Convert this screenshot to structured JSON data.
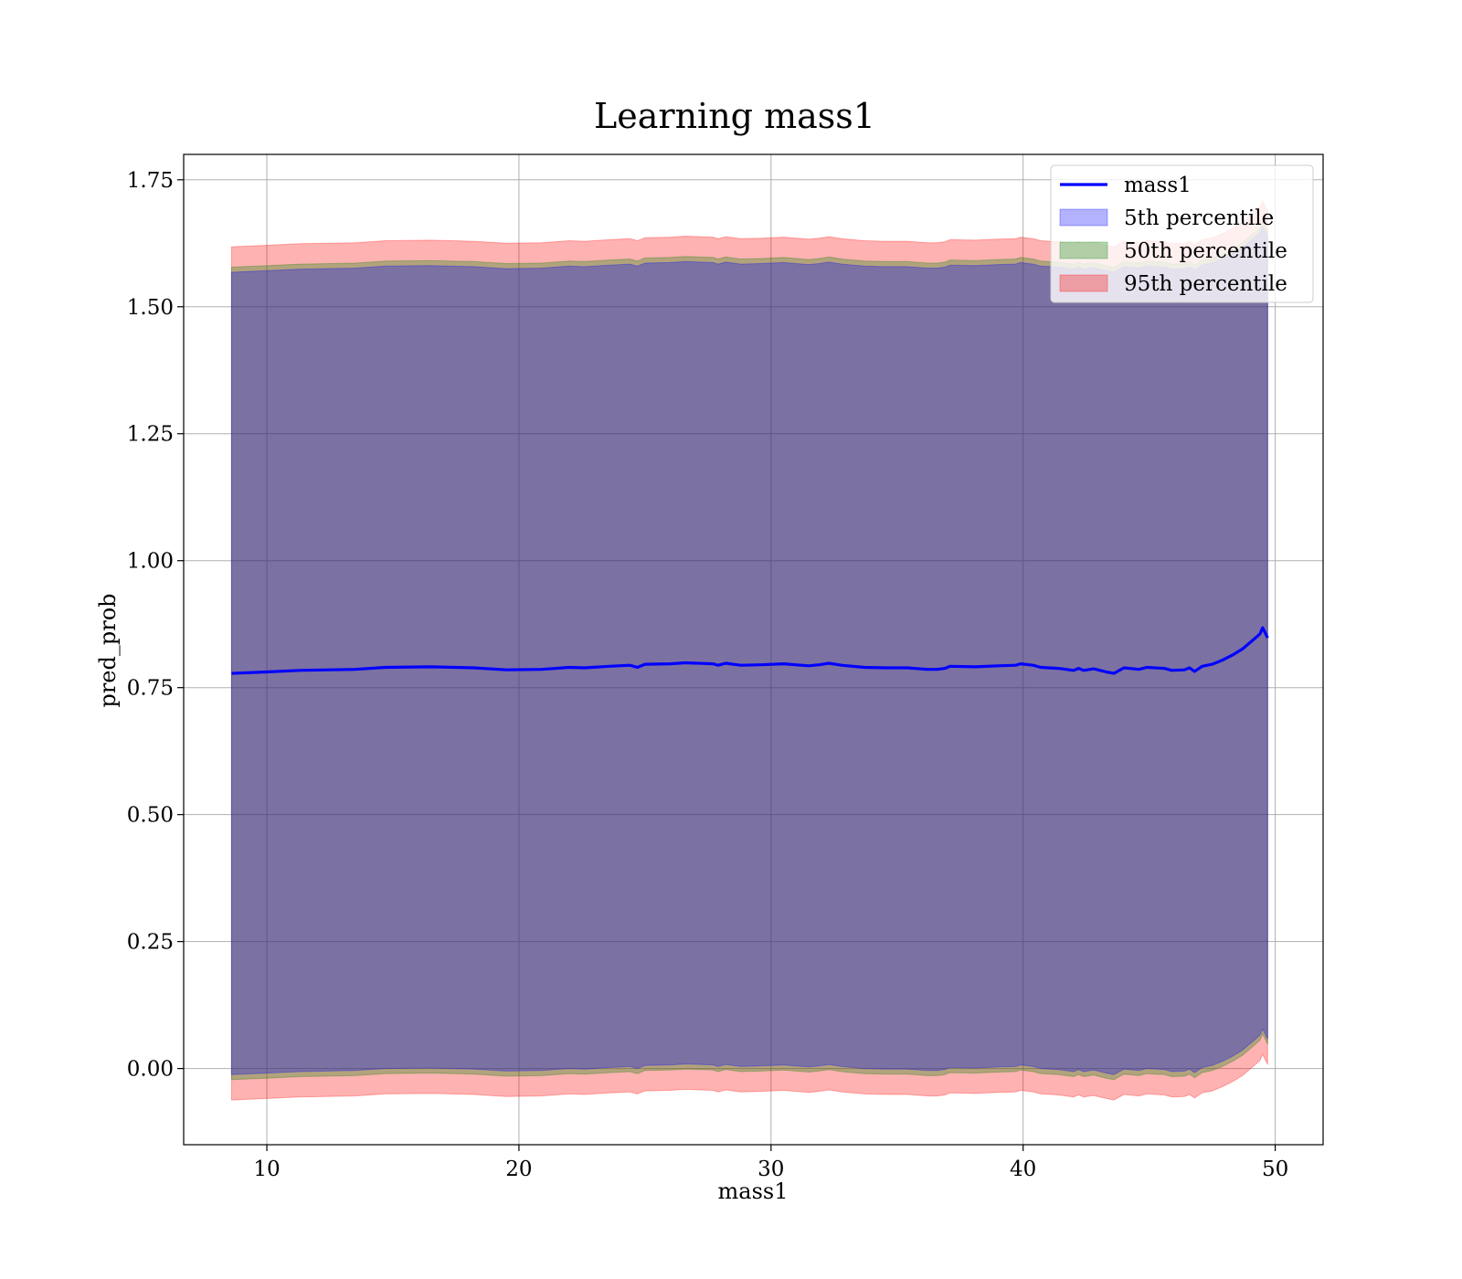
{
  "chart_data": {
    "type": "line",
    "title": "Learning mass1",
    "xlabel": "mass1",
    "ylabel": "pred_prob",
    "xlim": [
      6.7,
      51.9
    ],
    "ylim": [
      -0.15,
      1.8
    ],
    "x_ticks": [
      10,
      20,
      30,
      40,
      50
    ],
    "x_tick_labels": [
      "10",
      "20",
      "30",
      "40",
      "50"
    ],
    "y_ticks": [
      0.0,
      0.25,
      0.5,
      0.75,
      1.0,
      1.25,
      1.5,
      1.75
    ],
    "y_tick_labels": [
      "0.00",
      "0.25",
      "0.50",
      "0.75",
      "1.00",
      "1.25",
      "1.50",
      "1.75"
    ],
    "grid": true,
    "legend_position": "top-right",
    "x": [
      8.6,
      10,
      11.3,
      13.5,
      14.7,
      16.5,
      18.2,
      19.5,
      20.9,
      22,
      22.6,
      23.6,
      24.4,
      24.7,
      25,
      26,
      26.6,
      27.7,
      27.9,
      28.2,
      28.8,
      29.6,
      30.5,
      31.5,
      31.9,
      32.3,
      32.8,
      33.7,
      34.5,
      35.4,
      36.2,
      36.6,
      36.9,
      37.1,
      38.1,
      39,
      39.7,
      39.9,
      40.4,
      40.7,
      41.4,
      42,
      42.2,
      42.4,
      42.8,
      43.3,
      43.6,
      44,
      44.6,
      44.9,
      45.6,
      45.9,
      46.4,
      46.6,
      46.8,
      47.1,
      47.5,
      47.9,
      48.3,
      48.7,
      49.1,
      49.4,
      49.5,
      49.7
    ],
    "series": [
      {
        "name": "mass1",
        "color": "#0000ff",
        "values": [
          0.778,
          0.781,
          0.784,
          0.786,
          0.79,
          0.791,
          0.789,
          0.785,
          0.786,
          0.79,
          0.789,
          0.792,
          0.794,
          0.79,
          0.796,
          0.797,
          0.799,
          0.797,
          0.794,
          0.798,
          0.794,
          0.795,
          0.797,
          0.793,
          0.795,
          0.798,
          0.794,
          0.79,
          0.789,
          0.789,
          0.786,
          0.786,
          0.788,
          0.792,
          0.791,
          0.793,
          0.794,
          0.797,
          0.794,
          0.79,
          0.788,
          0.784,
          0.788,
          0.784,
          0.787,
          0.781,
          0.778,
          0.789,
          0.786,
          0.79,
          0.788,
          0.784,
          0.785,
          0.789,
          0.782,
          0.792,
          0.796,
          0.804,
          0.814,
          0.826,
          0.843,
          0.856,
          0.868,
          0.848
        ]
      }
    ],
    "bands": [
      {
        "name": "5th percentile",
        "color": "#0000ff",
        "alpha": 0.3,
        "lower_offset": -0.79,
        "upper_offset": 0.79
      },
      {
        "name": "50th percentile",
        "color": "#008000",
        "alpha": 0.3,
        "lower_offset": -0.8,
        "upper_offset": 0.8
      },
      {
        "name": "95th percentile",
        "color": "#ff0000",
        "alpha": 0.3,
        "lower_offset": -0.84,
        "upper_offset": 0.84
      }
    ]
  }
}
